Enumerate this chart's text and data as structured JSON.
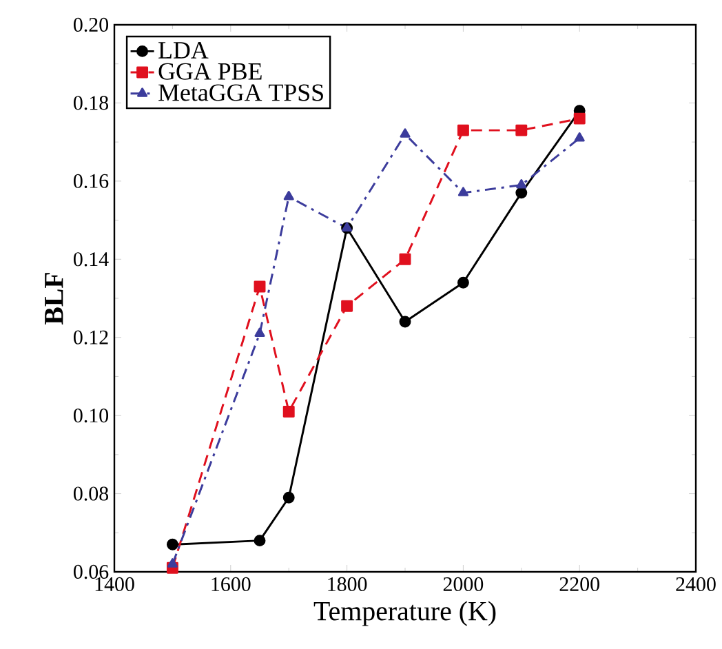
{
  "chart_data": {
    "type": "line",
    "xlabel": "Temperature (K)",
    "ylabel": "BLF",
    "x": [
      1500,
      1650,
      1700,
      1800,
      1900,
      2000,
      2100,
      2200
    ],
    "series": [
      {
        "name": "LDA",
        "color": "#000000",
        "marker": "circle",
        "line_style": "solid",
        "values": [
          0.067,
          0.068,
          0.079,
          0.148,
          0.124,
          0.134,
          0.157,
          0.178
        ]
      },
      {
        "name": "GGA PBE",
        "color": "#e0101e",
        "marker": "square",
        "line_style": "dashed",
        "values": [
          0.061,
          0.133,
          0.101,
          0.128,
          0.14,
          0.173,
          0.173,
          0.176
        ]
      },
      {
        "name": "MetaGGA TPSS",
        "color": "#3c3c9c",
        "marker": "triangle",
        "line_style": "dashdot",
        "values": [
          0.062,
          0.121,
          0.156,
          0.148,
          0.172,
          0.157,
          0.159,
          0.171
        ]
      }
    ],
    "xlim": [
      1400,
      2400
    ],
    "xticks": [
      1400,
      1600,
      1800,
      2000,
      2200,
      2400
    ],
    "ylim": [
      0.06,
      0.2
    ],
    "yticks": [
      0.06,
      0.08,
      {
        "value": 0.1,
        "label": "0.10"
      },
      0.12,
      0.14,
      0.16,
      0.18,
      {
        "value": 0.2,
        "label": "0.20"
      }
    ],
    "grid": false,
    "legend": "top left"
  }
}
